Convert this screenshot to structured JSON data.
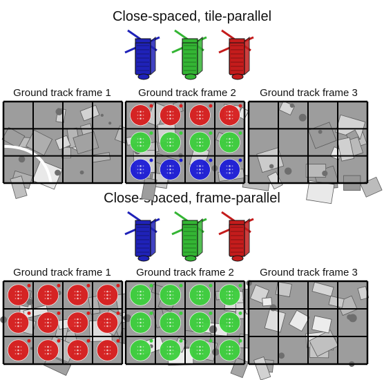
{
  "sections": [
    {
      "title": "Close-spaced, tile-parallel",
      "frames": [
        {
          "label": "Ground track frame 1",
          "tiles": [
            "",
            "",
            "",
            ""
          ]
        },
        {
          "label": "Ground track frame 2",
          "tiles": [
            "red",
            "green",
            "blue",
            ""
          ]
        },
        {
          "label": "Ground track frame 3",
          "tiles": [
            "",
            "",
            "",
            ""
          ]
        }
      ]
    },
    {
      "title": "Close-spaced, frame-parallel",
      "frames": [
        {
          "label": "Ground track frame 1",
          "tiles": [
            "red",
            "red",
            "red",
            ""
          ]
        },
        {
          "label": "Ground track frame 2",
          "tiles": [
            "green",
            "green",
            "green",
            ""
          ]
        },
        {
          "label": "Ground track frame 3",
          "tiles": [
            "",
            "",
            "",
            ""
          ]
        }
      ]
    }
  ],
  "satellites": [
    {
      "name": "blue-satellite",
      "color": "#1f22b8"
    },
    {
      "name": "green-satellite",
      "color": "#34b534"
    },
    {
      "name": "red-satellite",
      "color": "#c41c1c"
    }
  ],
  "colors": {
    "red": "#d81e1e",
    "green": "#3ccf3c",
    "blue": "#1c1cd6"
  }
}
